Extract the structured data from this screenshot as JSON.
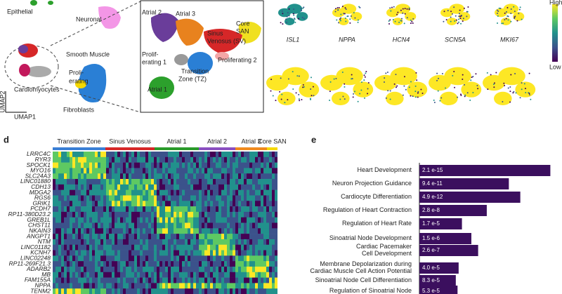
{
  "panel_a": {
    "labels": [
      "Epithelial",
      "Neuronal",
      "Smooth Muscle",
      "Proli-",
      "erating",
      "Cardiomyocytes",
      "Fibroblasts"
    ],
    "axis_y": "UMAP2",
    "axis_x": "UMAP1"
  },
  "panel_b": {
    "labels": [
      "Atrial 2",
      "Atrial 3",
      "Core",
      "SAN",
      "Sinus",
      "Venosus (SV)",
      "Prolif-",
      "erating 1",
      "Proliferating 2",
      "Transition",
      "Zone (TZ)",
      "Atrial 1"
    ]
  },
  "panel_c": {
    "genes": [
      "ISL1",
      "NPPA",
      "HCN4",
      "SCN5A",
      "MKI67"
    ],
    "scale_high": "High",
    "scale_low": "Low"
  },
  "panel_d": {
    "letter": "d",
    "clusters": [
      "Transition Zone",
      "Sinus Venosus",
      "Atrial 1",
      "Atrial 2",
      "Atrial 3",
      "Core SAN"
    ],
    "genes": [
      "LRRC4C",
      "RYR3",
      "SPOCK1",
      "MYO16",
      "SLC24A3",
      "LINC01880",
      "CDH13",
      "MDGA2",
      "RGS6",
      "GRIK1",
      "PCDH7",
      "RP11-380D23.2",
      "GREB1L",
      "CHST11",
      "NKAIN3",
      "ANGPT1",
      "NTM",
      "LINC01182",
      "KCNH7",
      "LINC02248",
      "RP11-269F21.3",
      "ADARB2",
      "MB",
      "FAM155A",
      "NPPA",
      "TENM2"
    ]
  },
  "chart_data": {
    "type": "bar",
    "letter": "e",
    "orientation": "horizontal",
    "log_scale": true,
    "color": "#3b0f5e",
    "categories": [
      [
        "Heart Development"
      ],
      [
        "Neuron Projection Guidance"
      ],
      [
        "Cardiocyte Differentiation"
      ],
      [
        "Regulation of Heart Contraction"
      ],
      [
        "Regulation of Heart Rate"
      ],
      [
        "Sinoatrial Node Development"
      ],
      [
        "Cardiac Pacemaker",
        "Cell Development"
      ],
      [
        "Membrane Depolarization during",
        "Cardiac Muscle Cell Action Potential"
      ],
      [
        "Sinoatrial Node Cell Differentiation"
      ],
      [
        "Regulation of Sinoatrial Node"
      ]
    ],
    "values": [
      2.1e-15,
      9.4e-11,
      4.9e-12,
      2.8e-08,
      1.7e-05,
      1.5e-06,
      2.6e-07,
      4e-05,
      8.3e-05,
      5.3e-05
    ],
    "value_labels": [
      "2.1 e-15",
      "9.4 e-11",
      "4.9 e-12",
      "2.8 e-8",
      "1.7 e-5",
      "1.5 e-6",
      "2.6 e-7",
      "4.0 e-5",
      "8.3 e-5",
      "5.3 e-5"
    ]
  }
}
